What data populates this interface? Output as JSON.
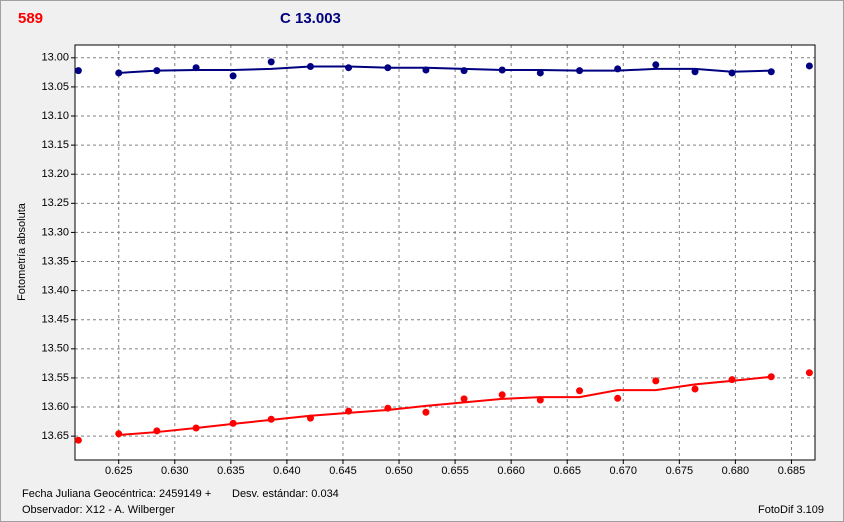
{
  "chart_data": {
    "type": "scatter",
    "title": "589",
    "subtitle": "C 13.003",
    "y_label": "Fotometría absoluta",
    "footer": {
      "x_label": "Fecha Juliana Geocéntrica: 2459149 +",
      "deviation": "Desv. estándar: 0.034",
      "observer": "Observador: X12 - A. Wilberger",
      "software": "FotoDif 3.109"
    },
    "xlim": [
      0.6211,
      0.6871
    ],
    "ylim": [
      13.691,
      12.978
    ],
    "grid": true,
    "xticks": [
      0.625,
      {
        "value": 0.63,
        "label": "0.630"
      },
      0.635,
      {
        "value": 0.64,
        "label": "0.640"
      },
      0.645,
      {
        "value": 0.65,
        "label": "0.650"
      },
      0.655,
      {
        "value": 0.66,
        "label": "0.660"
      },
      0.665,
      {
        "value": 0.67,
        "label": "0.670"
      },
      0.675,
      {
        "value": 0.68,
        "label": "0.680"
      },
      0.685
    ],
    "yticks": [
      {
        "value": 13.0,
        "label": "13.00"
      },
      13.05,
      {
        "value": 13.1,
        "label": "13.10"
      },
      13.15,
      {
        "value": 13.2,
        "label": "13.20"
      },
      13.25,
      {
        "value": 13.3,
        "label": "13.30"
      },
      13.35,
      {
        "value": 13.4,
        "label": "13.40"
      },
      13.45,
      {
        "value": 13.5,
        "label": "13.50"
      },
      13.55,
      {
        "value": 13.6,
        "label": "13.60"
      },
      13.65
    ],
    "series": [
      {
        "color": "#000080",
        "mode": "points",
        "x": [
          0.6214,
          0.625,
          0.6284,
          0.6319,
          0.6352,
          0.6386,
          0.6421,
          0.6455,
          0.649,
          0.6524,
          0.6558,
          0.6592,
          0.6626,
          0.6661,
          0.6695,
          0.6729,
          0.6764,
          0.6797,
          0.6832,
          0.6866
        ],
        "values": [
          13.022,
          13.026,
          13.022,
          13.017,
          13.031,
          13.007,
          13.015,
          13.017,
          13.017,
          13.021,
          13.022,
          13.021,
          13.026,
          13.022,
          13.019,
          13.012,
          13.024,
          13.026,
          13.024,
          13.014
        ]
      },
      {
        "color": "#000080",
        "mode": "line",
        "x": [
          0.625,
          0.6284,
          0.6319,
          0.6352,
          0.6386,
          0.6421,
          0.6455,
          0.649,
          0.6524,
          0.6558,
          0.6592,
          0.6626,
          0.6661,
          0.6695,
          0.6729,
          0.6764,
          0.6797,
          0.6832
        ],
        "values": [
          13.026,
          13.022,
          13.021,
          13.021,
          13.019,
          13.015,
          13.015,
          13.017,
          13.017,
          13.019,
          13.021,
          13.021,
          13.022,
          13.022,
          13.019,
          13.019,
          13.024,
          13.022
        ]
      },
      {
        "color": "#ff0000",
        "mode": "points",
        "x": [
          0.6214,
          0.625,
          0.6284,
          0.6319,
          0.6352,
          0.6386,
          0.6421,
          0.6455,
          0.649,
          0.6524,
          0.6558,
          0.6592,
          0.6626,
          0.6661,
          0.6695,
          0.6729,
          0.6764,
          0.6797,
          0.6832,
          0.6866
        ],
        "values": [
          13.657,
          13.646,
          13.641,
          13.636,
          13.628,
          13.621,
          13.619,
          13.607,
          13.602,
          13.609,
          13.586,
          13.579,
          13.588,
          13.572,
          13.585,
          13.555,
          13.569,
          13.553,
          13.548,
          13.541
        ]
      },
      {
        "color": "#ff0000",
        "mode": "line",
        "x": [
          0.625,
          0.6284,
          0.6319,
          0.6352,
          0.6386,
          0.6421,
          0.6455,
          0.649,
          0.6524,
          0.6558,
          0.6592,
          0.6626,
          0.6661,
          0.6695,
          0.6729,
          0.6764,
          0.6797,
          0.6832
        ],
        "values": [
          13.648,
          13.643,
          13.636,
          13.629,
          13.622,
          13.615,
          13.61,
          13.605,
          13.598,
          13.592,
          13.586,
          13.583,
          13.583,
          13.571,
          13.571,
          13.561,
          13.555,
          13.548
        ]
      }
    ]
  }
}
